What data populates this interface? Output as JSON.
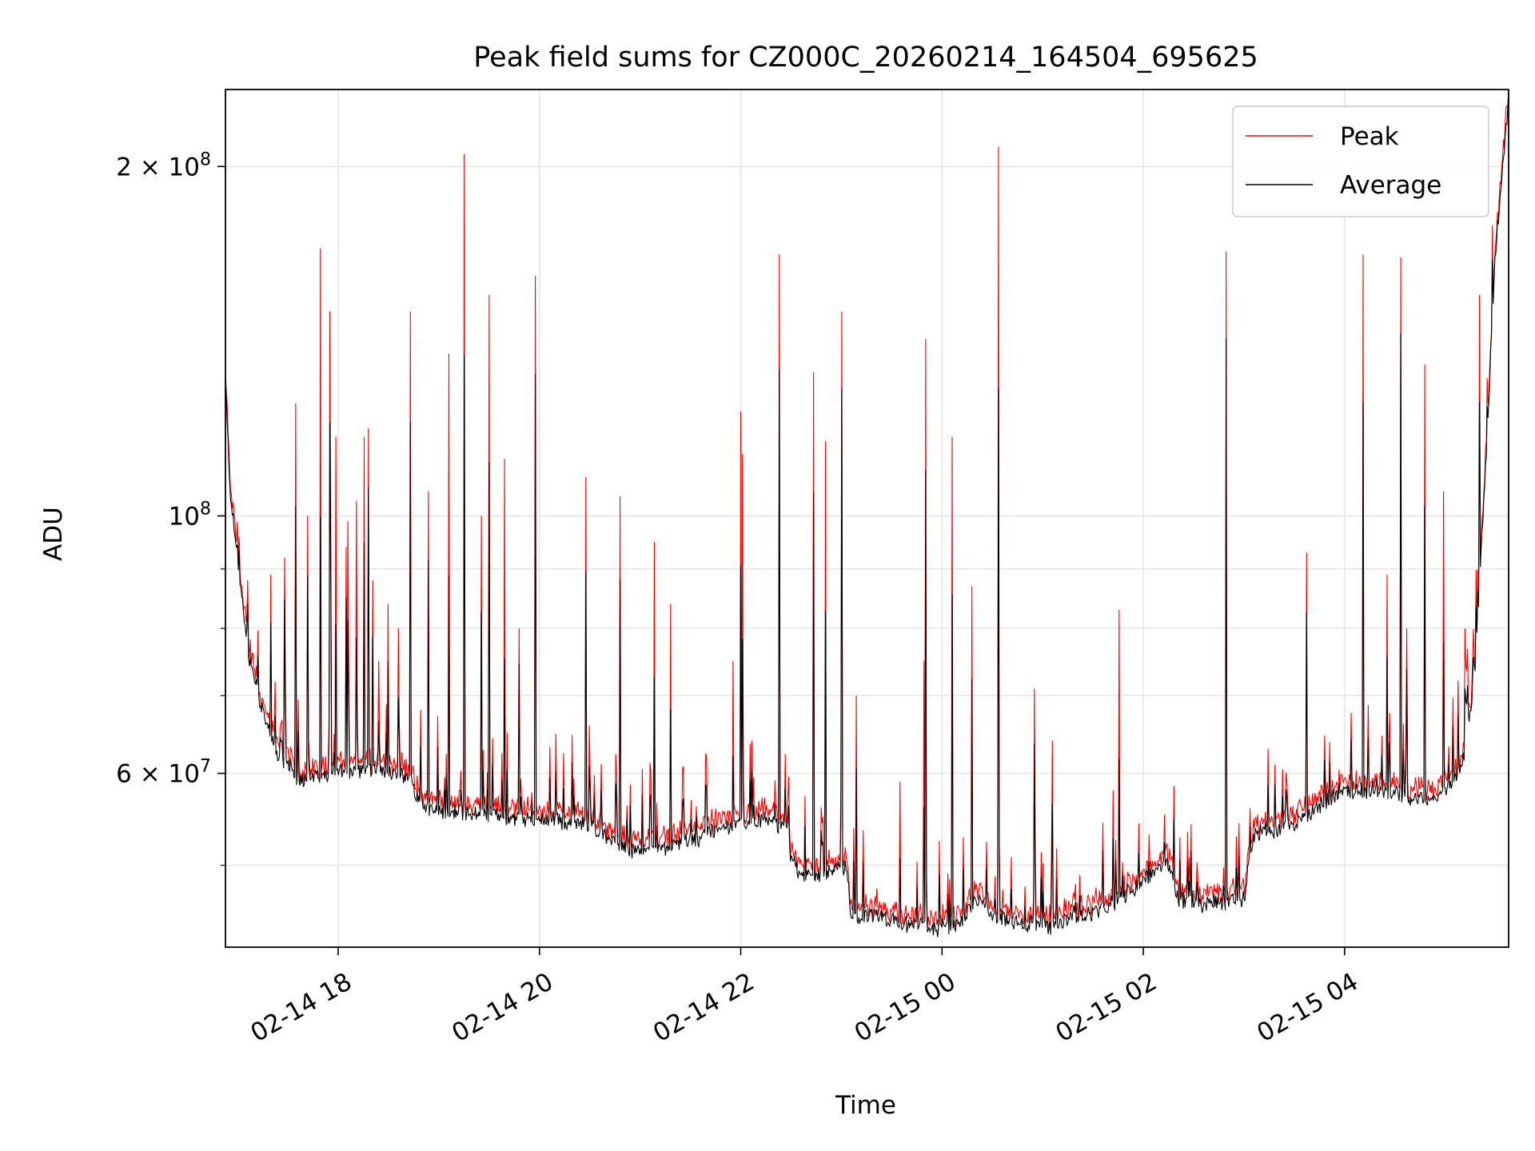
{
  "chart_data": {
    "type": "line",
    "title": "Peak field sums for CZ000C_20260214_164504_695625",
    "xlabel": "Time",
    "ylabel": "ADU",
    "yscale": "log",
    "xlim": [
      16.88,
      29.63
    ],
    "ylim": [
      42500000,
      233000000
    ],
    "grid": true,
    "legend_position": "upper right",
    "x_ticks": [
      {
        "value": 18,
        "label": "02-14 18"
      },
      {
        "value": 20,
        "label": "02-14 20"
      },
      {
        "value": 22,
        "label": "02-14 22"
      },
      {
        "value": 24,
        "label": "02-15 00"
      },
      {
        "value": 26,
        "label": "02-15 02"
      },
      {
        "value": 28,
        "label": "02-15 04"
      }
    ],
    "y_major_ticks": [
      {
        "value": 60000000,
        "mantissa": "6",
        "exponent": "7"
      },
      {
        "value": 100000000,
        "mantissa": "",
        "exponent": "8"
      },
      {
        "value": 200000000,
        "mantissa": "2",
        "exponent": "8"
      }
    ],
    "y_minor_gridlines": [
      50000000,
      70000000,
      80000000,
      90000000
    ],
    "series_colors": {
      "Peak": "#ff0000",
      "Average": "#000000"
    },
    "baseline_knots": [
      [
        16.88,
        130000000
      ],
      [
        16.93,
        105000000
      ],
      [
        17.0,
        92000000
      ],
      [
        17.1,
        77000000
      ],
      [
        17.25,
        68000000
      ],
      [
        17.4,
        62500000
      ],
      [
        17.6,
        59500000
      ],
      [
        17.85,
        60000000
      ],
      [
        18.1,
        60500000
      ],
      [
        18.4,
        61000000
      ],
      [
        18.7,
        60000000
      ],
      [
        18.8,
        57000000
      ],
      [
        19.0,
        56000000
      ],
      [
        19.5,
        55500000
      ],
      [
        20.0,
        55000000
      ],
      [
        20.5,
        54500000
      ],
      [
        20.7,
        53000000
      ],
      [
        20.9,
        51500000
      ],
      [
        21.2,
        52000000
      ],
      [
        21.6,
        53000000
      ],
      [
        21.8,
        54000000
      ],
      [
        22.3,
        55000000
      ],
      [
        22.45,
        54000000
      ],
      [
        22.5,
        51000000
      ],
      [
        22.6,
        49000000
      ],
      [
        22.8,
        49500000
      ],
      [
        23.05,
        50000000
      ],
      [
        23.1,
        45000000
      ],
      [
        23.3,
        45500000
      ],
      [
        23.5,
        45000000
      ],
      [
        23.85,
        44500000
      ],
      [
        24.0,
        44000000
      ],
      [
        24.2,
        45000000
      ],
      [
        24.35,
        47000000
      ],
      [
        24.5,
        45500000
      ],
      [
        24.9,
        44500000
      ],
      [
        25.1,
        44500000
      ],
      [
        25.4,
        45500000
      ],
      [
        25.6,
        46000000
      ],
      [
        25.9,
        48000000
      ],
      [
        26.1,
        49500000
      ],
      [
        26.25,
        50500000
      ],
      [
        26.35,
        47000000
      ],
      [
        26.6,
        46500000
      ],
      [
        26.9,
        47000000
      ],
      [
        27.0,
        47000000
      ],
      [
        27.1,
        53500000
      ],
      [
        27.5,
        54500000
      ],
      [
        27.8,
        57000000
      ],
      [
        28.0,
        58000000
      ],
      [
        28.3,
        58500000
      ],
      [
        28.6,
        57500000
      ],
      [
        28.9,
        57000000
      ],
      [
        29.1,
        60000000
      ],
      [
        29.2,
        62000000
      ],
      [
        29.3,
        75000000
      ],
      [
        29.4,
        110000000
      ],
      [
        29.5,
        170000000
      ],
      [
        29.63,
        231000000
      ]
    ],
    "peak_spikes": [
      [
        17.02,
        96000000
      ],
      [
        17.1,
        88000000
      ],
      [
        17.2,
        76000000
      ],
      [
        17.33,
        89000000
      ],
      [
        17.47,
        92000000
      ],
      [
        17.58,
        125000000
      ],
      [
        17.7,
        100000000
      ],
      [
        17.82,
        170000000
      ],
      [
        17.93,
        99000000
      ],
      [
        17.98,
        117000000
      ],
      [
        18.08,
        94000000
      ],
      [
        17.92,
        150000000
      ],
      [
        18.1,
        99000000
      ],
      [
        18.18,
        103000000
      ],
      [
        18.26,
        117000000
      ],
      [
        18.3,
        119000000
      ],
      [
        18.34,
        88000000
      ],
      [
        18.4,
        75000000
      ],
      [
        18.5,
        84000000
      ],
      [
        18.6,
        80000000
      ],
      [
        18.72,
        150000000
      ],
      [
        18.9,
        105000000
      ],
      [
        19.1,
        138000000
      ],
      [
        19.25,
        205000000
      ],
      [
        19.42,
        100000000
      ],
      [
        19.5,
        155000000
      ],
      [
        19.65,
        112000000
      ],
      [
        19.8,
        80000000
      ],
      [
        19.96,
        161000000
      ],
      [
        20.46,
        108000000
      ],
      [
        20.8,
        104000000
      ],
      [
        21.14,
        95000000
      ],
      [
        21.3,
        84000000
      ],
      [
        21.92,
        75000000
      ],
      [
        22.0,
        123000000
      ],
      [
        22.02,
        113000000
      ],
      [
        22.38,
        168000000
      ],
      [
        22.72,
        133000000
      ],
      [
        22.84,
        116000000
      ],
      [
        23.0,
        150000000
      ],
      [
        23.15,
        70000000
      ],
      [
        23.58,
        59000000
      ],
      [
        23.82,
        75000000
      ],
      [
        23.84,
        142000000
      ],
      [
        24.1,
        117000000
      ],
      [
        24.3,
        87000000
      ],
      [
        24.56,
        208000000
      ],
      [
        24.92,
        71000000
      ],
      [
        25.1,
        64000000
      ],
      [
        25.7,
        58000000
      ],
      [
        25.76,
        83000000
      ],
      [
        26.82,
        169000000
      ],
      [
        27.24,
        63000000
      ],
      [
        27.62,
        93000000
      ],
      [
        28.18,
        168000000
      ],
      [
        28.32,
        60000000
      ],
      [
        28.42,
        89000000
      ],
      [
        28.56,
        167000000
      ],
      [
        28.62,
        80000000
      ],
      [
        28.8,
        135000000
      ],
      [
        28.98,
        105000000
      ],
      [
        29.2,
        80000000
      ],
      [
        29.34,
        155000000
      ]
    ],
    "series": [
      {
        "name": "Peak",
        "color": "#ff0000"
      },
      {
        "name": "Average",
        "color": "#000000"
      }
    ],
    "n_points": 1500
  }
}
